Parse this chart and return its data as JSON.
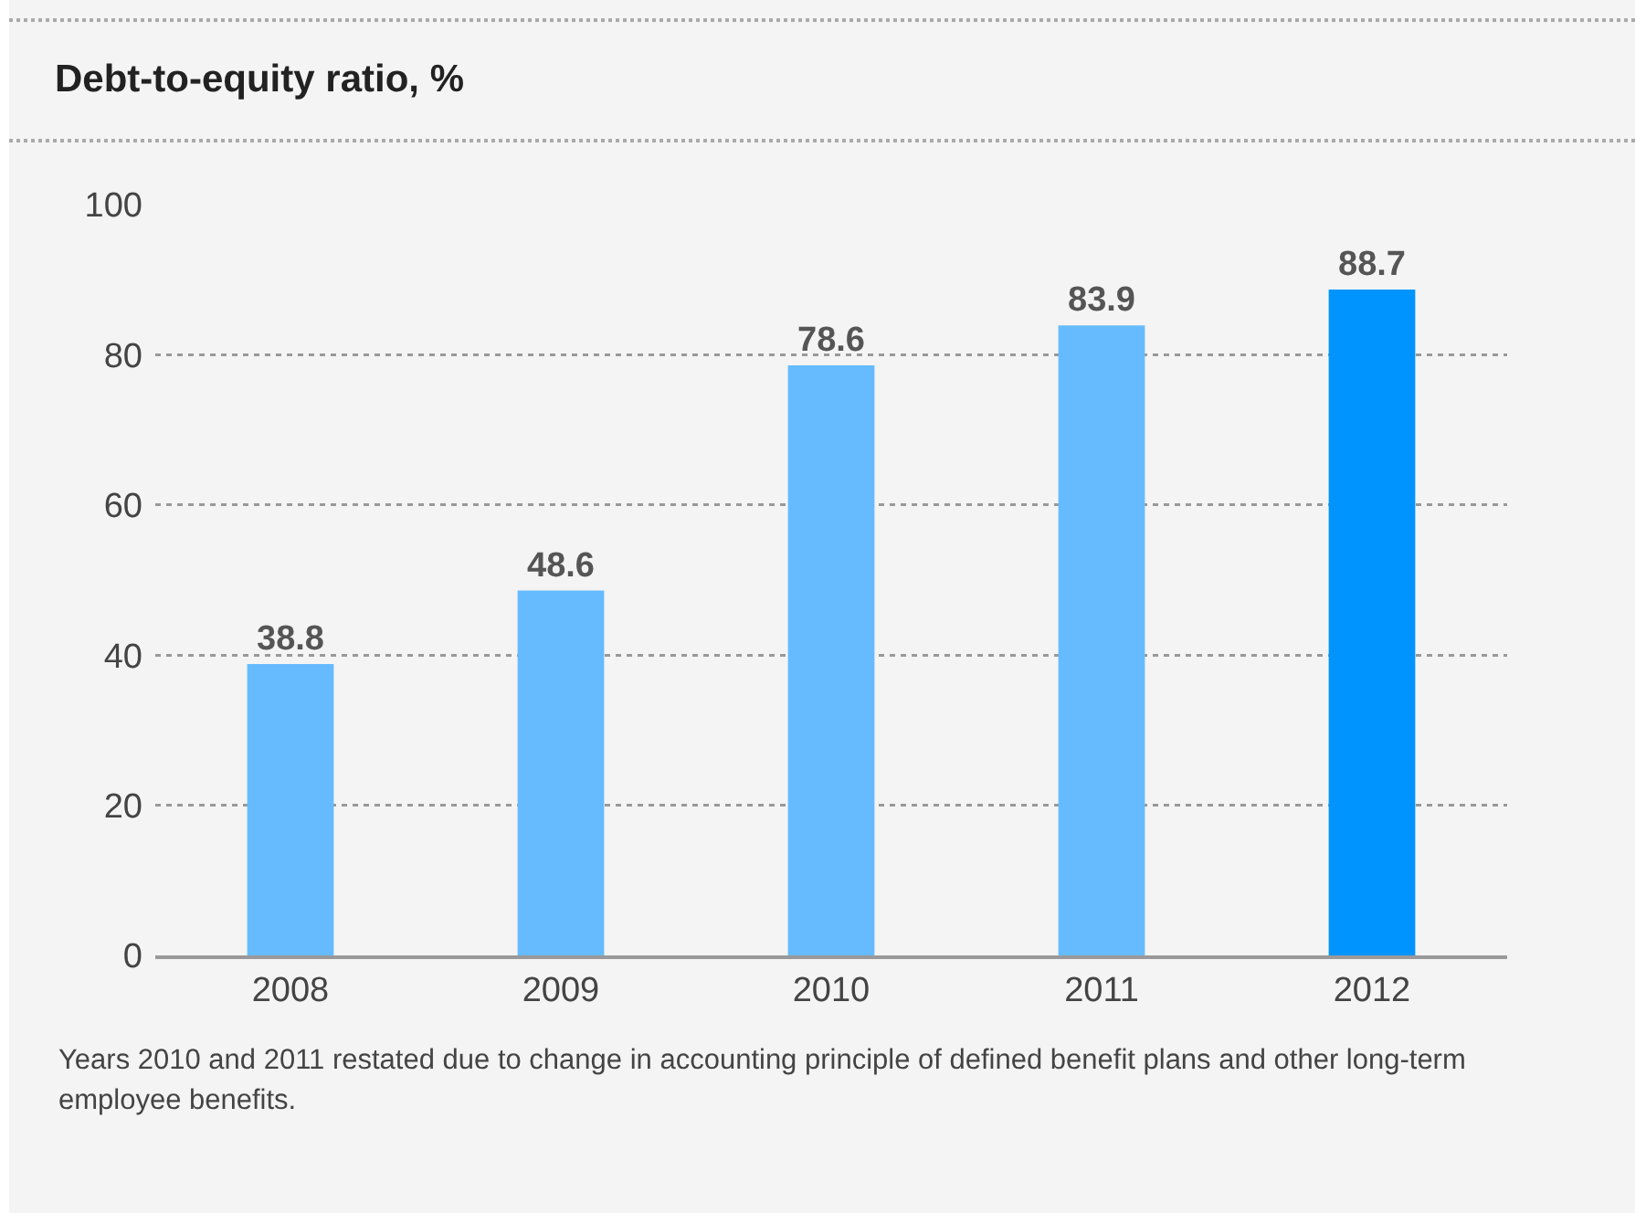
{
  "chart_data": {
    "type": "bar",
    "title": "Debt-to-equity ratio, %",
    "categories": [
      "2008",
      "2009",
      "2010",
      "2011",
      "2012"
    ],
    "values": [
      38.8,
      48.6,
      78.6,
      83.9,
      88.7
    ],
    "colors": [
      "#66bbff",
      "#66bbff",
      "#66bbff",
      "#66bbff",
      "#0094ff"
    ],
    "ylim": [
      0,
      100
    ],
    "yticks": [
      0,
      20,
      40,
      60,
      80,
      100
    ],
    "grid": "y",
    "data_labels": true,
    "annotations": [
      "Years 2010 and 2011 restated due to change in accounting principle of defined benefit plans and other long-term employee benefits."
    ]
  }
}
